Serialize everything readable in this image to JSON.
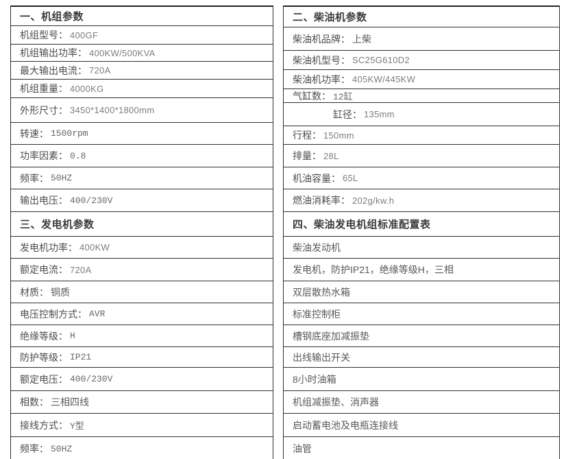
{
  "page": {
    "background": "#ffffff",
    "border_color": "#2f2f2f",
    "header_text_color": "#3b3b3b",
    "label_text_color": "#4d4d4d",
    "value_text_color": "#7d7d7d"
  },
  "tables": [
    {
      "rows": [
        {
          "type": "header",
          "text": "一、机组参数"
        },
        {
          "type": "data",
          "label": "机组型号：",
          "value": "400GF",
          "value_style": "sans"
        },
        {
          "type": "data",
          "label": "机组输出功率：",
          "value": "400KW/500KVA",
          "value_style": "sans"
        },
        {
          "type": "data",
          "label": "最大输出电流：",
          "value": "720A",
          "value_style": "sans"
        },
        {
          "type": "data",
          "label": "机组重量：",
          "value": "4000KG",
          "value_style": "sans"
        },
        {
          "type": "data",
          "label": "外形尺寸：",
          "value": "3450*1400*1800mm",
          "value_style": "sans"
        },
        {
          "type": "data",
          "label": "转速：",
          "value": "1500rpm",
          "value_style": "mono"
        },
        {
          "type": "data",
          "label": "功率因素：",
          "value": "0.8",
          "value_style": "mono"
        },
        {
          "type": "data",
          "label": "频率：",
          "value": "50HZ",
          "value_style": "mono"
        },
        {
          "type": "data",
          "label": "输出电压：",
          "value": "400/230V",
          "value_style": "mono"
        },
        {
          "type": "header",
          "text": "三、发电机参数"
        },
        {
          "type": "data",
          "label": "发电机功率：",
          "value": "400KW",
          "value_style": "sans"
        },
        {
          "type": "data",
          "label": "额定电流：",
          "value": "720A",
          "value_style": "sans"
        },
        {
          "type": "data",
          "label": "材质：",
          "value": "铜质",
          "value_style": "cn"
        },
        {
          "type": "data",
          "label": "电压控制方式：",
          "value": "AVR",
          "value_style": "mono"
        },
        {
          "type": "data",
          "label": "绝缘等级：",
          "value": "H",
          "value_style": "mono"
        },
        {
          "type": "data",
          "label": "防护等级：",
          "value": "IP21",
          "value_style": "mono"
        },
        {
          "type": "data",
          "label": "额定电压：",
          "value": "400/230V",
          "value_style": "mono"
        },
        {
          "type": "data",
          "label": "相数：",
          "value": "三相四线",
          "value_style": "cn"
        },
        {
          "type": "data",
          "label": "接线方式：",
          "value": "Y型",
          "value_style": "mono"
        },
        {
          "type": "data",
          "label": "频率：",
          "value": "50HZ",
          "value_style": "mono"
        }
      ]
    },
    {
      "rows": [
        {
          "type": "header",
          "text": "二、柴油机参数"
        },
        {
          "type": "data",
          "label": "柴油机品牌：",
          "value": "上柴",
          "value_style": "cn"
        },
        {
          "type": "data",
          "label": "柴油机型号：",
          "value": "SC25G610D2",
          "value_style": "sans"
        },
        {
          "type": "data",
          "label": "柴油机功率：",
          "value": "405KW/445KW",
          "value_style": "sans"
        },
        {
          "type": "data",
          "label": "气缸数：",
          "value": "12缸",
          "value_style": "mono"
        },
        {
          "type": "data",
          "label": "缸径：",
          "value": "135mm",
          "value_style": "sans",
          "indent": true
        },
        {
          "type": "data",
          "label": "行程：",
          "value": "150mm",
          "value_style": "sans"
        },
        {
          "type": "data",
          "label": "排量：",
          "value": "28L",
          "value_style": "sans"
        },
        {
          "type": "data",
          "label": "机油容量：",
          "value": "65L",
          "value_style": "sans"
        },
        {
          "type": "data",
          "label": "燃油消耗率：",
          "value": "202g/kw.h",
          "value_style": "sans"
        },
        {
          "type": "header",
          "text": "四、柴油发电机组标准配置表"
        },
        {
          "type": "item",
          "text": "柴油发动机"
        },
        {
          "type": "item",
          "text": "发电机，防护IP21，绝缘等级H，三相"
        },
        {
          "type": "item",
          "text": "双层散热水箱"
        },
        {
          "type": "item",
          "text": "标准控制柜"
        },
        {
          "type": "item",
          "text": "槽钢底座加减振垫"
        },
        {
          "type": "item",
          "text": "出线输出开关"
        },
        {
          "type": "item",
          "text": "8小时油箱"
        },
        {
          "type": "item",
          "text": "机组减振垫、消声器"
        },
        {
          "type": "item",
          "text": "启动蓄电池及电瓶连接线"
        },
        {
          "type": "item",
          "text": "油管"
        }
      ]
    }
  ]
}
